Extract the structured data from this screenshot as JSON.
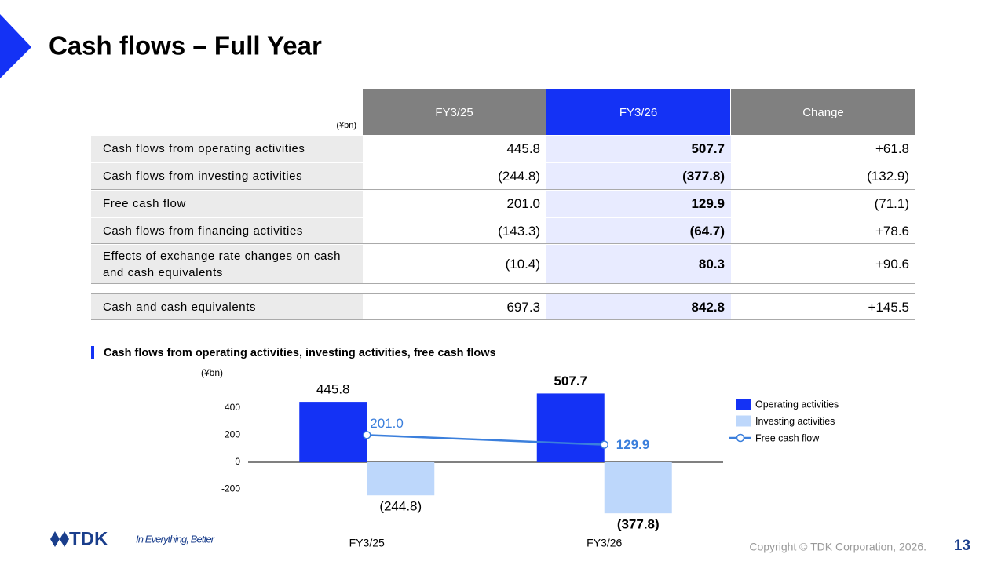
{
  "header": {
    "title": "Cash flows – Full Year"
  },
  "table": {
    "unit": "(¥bn)",
    "columns": [
      "FY3/25",
      "FY3/26",
      "Change"
    ],
    "rows": [
      [
        "Cash flows from operating activities",
        "445.8",
        "507.7",
        "+61.8"
      ],
      [
        "Cash flows from investing activities",
        "(244.8)",
        "(377.8)",
        "(132.9)"
      ],
      [
        "Free cash flow",
        "201.0",
        "129.9",
        "(71.1)"
      ],
      [
        "Cash flows from financing activities",
        "(143.3)",
        "(64.7)",
        "+78.6"
      ],
      [
        "Effects of exchange rate changes on cash and cash equivalents",
        "(10.4)",
        "80.3",
        "+90.6"
      ],
      [
        "Cash and cash equivalents",
        "697.3",
        "842.8",
        "+145.5"
      ]
    ]
  },
  "chart_data": {
    "type": "bar",
    "title": "Cash flows from operating activities, investing activities, free cash flows",
    "y_label": "(¥bn)",
    "categories": [
      "FY3/25",
      "FY3/26"
    ],
    "series": [
      {
        "name": "Operating activities",
        "color": "#1432f5",
        "values": [
          445.8,
          507.7
        ],
        "value_labels": [
          "445.8",
          "507.7"
        ]
      },
      {
        "name": "Investing activities",
        "color": "#bdd7fb",
        "values": [
          -244.8,
          -377.8
        ],
        "value_labels": [
          "(244.8)",
          "(377.8)"
        ]
      },
      {
        "name": "Free cash flow",
        "type": "line",
        "color": "#3b7fdc",
        "values": [
          201.0,
          129.9
        ],
        "value_labels": [
          "201.0",
          "129.9"
        ]
      }
    ],
    "ylim": [
      -400,
      600
    ],
    "yticks": [
      -200,
      0,
      200,
      400
    ]
  },
  "footer": {
    "logo": "TDK",
    "tagline": "In Everything, Better",
    "copyright": "Copyright  © TDK Corporation, 2026.",
    "page": "13"
  }
}
